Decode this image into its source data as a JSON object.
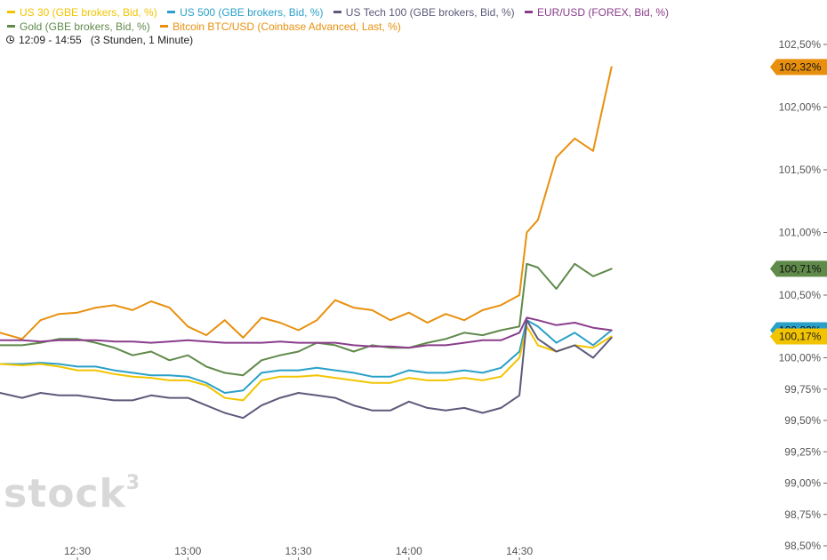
{
  "legend": [
    {
      "label": "US 30 (GBE brokers, Bid, %)",
      "color": "#f2c400"
    },
    {
      "label": "US 500 (GBE brokers, Bid, %)",
      "color": "#2aa0c8"
    },
    {
      "label": "US Tech 100 (GBE brokers, Bid, %)",
      "color": "#5c5a7a"
    },
    {
      "label": "EUR/USD (FOREX, Bid, %)",
      "color": "#8b3d8b"
    },
    {
      "label": "Gold (GBE brokers, Bid, %)",
      "color": "#5f8a4a"
    },
    {
      "label": "Bitcoin BTC/USD (Coinbase Advanced, Last, %)",
      "color": "#e8900e"
    }
  ],
  "range": {
    "text": "12:09 - 14:55",
    "span": "(3 Stunden, 1 Minute)"
  },
  "watermark": {
    "brand": "stock",
    "sup": "3"
  },
  "chart_data": {
    "type": "line",
    "xlabel": "",
    "ylabel": "",
    "ylim": [
      98.5,
      102.5
    ],
    "x_ticks": [
      "12:30",
      "13:00",
      "13:30",
      "14:00",
      "14:30"
    ],
    "y_ticks": [
      {
        "value": 102.5,
        "label": "102,50%"
      },
      {
        "value": 102.0,
        "label": "102,00%"
      },
      {
        "value": 101.5,
        "label": "101,50%"
      },
      {
        "value": 101.0,
        "label": "101,00%"
      },
      {
        "value": 100.5,
        "label": "100,50%"
      },
      {
        "value": 100.0,
        "label": "100,00%"
      },
      {
        "value": 99.75,
        "label": "99,75%"
      },
      {
        "value": 99.5,
        "label": "99,50%"
      },
      {
        "value": 99.25,
        "label": "99,25%"
      },
      {
        "value": 99.0,
        "label": "99,00%"
      },
      {
        "value": 98.75,
        "label": "98,75%"
      },
      {
        "value": 98.5,
        "label": "98,50%"
      }
    ],
    "grid": false,
    "legend_position": "top-left",
    "x": [
      "12:09",
      "12:15",
      "12:20",
      "12:25",
      "12:30",
      "12:35",
      "12:40",
      "12:45",
      "12:50",
      "12:55",
      "13:00",
      "13:05",
      "13:10",
      "13:15",
      "13:20",
      "13:25",
      "13:30",
      "13:35",
      "13:40",
      "13:45",
      "13:50",
      "13:55",
      "14:00",
      "14:05",
      "14:10",
      "14:15",
      "14:20",
      "14:25",
      "14:30",
      "14:32",
      "14:35",
      "14:40",
      "14:45",
      "14:50",
      "14:55"
    ],
    "series": [
      {
        "name": "Bitcoin BTC/USD (Coinbase Advanced, Last, %)",
        "color": "#e8900e",
        "last_label": "102,32%",
        "values": [
          100.2,
          100.15,
          100.3,
          100.35,
          100.36,
          100.4,
          100.42,
          100.38,
          100.45,
          100.4,
          100.25,
          100.18,
          100.3,
          100.16,
          100.32,
          100.28,
          100.22,
          100.3,
          100.46,
          100.4,
          100.38,
          100.3,
          100.36,
          100.28,
          100.35,
          100.3,
          100.38,
          100.42,
          100.5,
          101.0,
          101.1,
          101.6,
          101.75,
          101.65,
          102.32
        ]
      },
      {
        "name": "Gold (GBE brokers, Bid, %)",
        "color": "#5f8a4a",
        "last_label": "100,71%",
        "values": [
          100.1,
          100.1,
          100.12,
          100.15,
          100.15,
          100.12,
          100.08,
          100.02,
          100.05,
          99.98,
          100.02,
          99.93,
          99.88,
          99.86,
          99.98,
          100.02,
          100.05,
          100.12,
          100.1,
          100.05,
          100.1,
          100.08,
          100.08,
          100.12,
          100.15,
          100.2,
          100.18,
          100.22,
          100.25,
          100.75,
          100.72,
          100.55,
          100.75,
          100.65,
          100.71
        ]
      },
      {
        "name": "US 500 (GBE brokers, Bid, %)",
        "color": "#2aa0c8",
        "last_label": "100,22%",
        "values": [
          99.95,
          99.95,
          99.96,
          99.95,
          99.93,
          99.93,
          99.9,
          99.88,
          99.86,
          99.86,
          99.85,
          99.8,
          99.72,
          99.74,
          99.88,
          99.9,
          99.9,
          99.92,
          99.9,
          99.88,
          99.85,
          99.85,
          99.9,
          99.88,
          99.88,
          99.9,
          99.88,
          99.92,
          100.05,
          100.3,
          100.25,
          100.12,
          100.2,
          100.1,
          100.22
        ]
      },
      {
        "name": "US 30 (GBE brokers, Bid, %)",
        "color": "#f2c400",
        "last_label": "100,17%",
        "values": [
          99.95,
          99.94,
          99.95,
          99.93,
          99.9,
          99.9,
          99.87,
          99.85,
          99.84,
          99.82,
          99.82,
          99.78,
          99.68,
          99.66,
          99.82,
          99.85,
          99.85,
          99.86,
          99.84,
          99.82,
          99.8,
          99.8,
          99.84,
          99.82,
          99.82,
          99.84,
          99.82,
          99.85,
          100.0,
          100.25,
          100.1,
          100.05,
          100.1,
          100.08,
          100.17
        ]
      },
      {
        "name": "US Tech 100 (GBE brokers, Bid, %)",
        "color": "#5c5a7a",
        "last_label": "",
        "values": [
          99.72,
          99.68,
          99.72,
          99.7,
          99.7,
          99.68,
          99.66,
          99.66,
          99.7,
          99.68,
          99.68,
          99.62,
          99.56,
          99.52,
          99.62,
          99.68,
          99.72,
          99.7,
          99.68,
          99.62,
          99.58,
          99.58,
          99.65,
          99.6,
          99.58,
          99.6,
          99.56,
          99.6,
          99.7,
          100.3,
          100.15,
          100.05,
          100.1,
          100.0,
          100.16
        ]
      },
      {
        "name": "EUR/USD (FOREX, Bid, %)",
        "color": "#8b3d8b",
        "last_label": "",
        "values": [
          100.14,
          100.14,
          100.13,
          100.14,
          100.14,
          100.14,
          100.13,
          100.13,
          100.12,
          100.13,
          100.14,
          100.13,
          100.12,
          100.12,
          100.12,
          100.13,
          100.12,
          100.12,
          100.12,
          100.1,
          100.09,
          100.09,
          100.08,
          100.1,
          100.1,
          100.12,
          100.14,
          100.14,
          100.2,
          100.32,
          100.3,
          100.26,
          100.28,
          100.24,
          100.22
        ]
      }
    ]
  }
}
